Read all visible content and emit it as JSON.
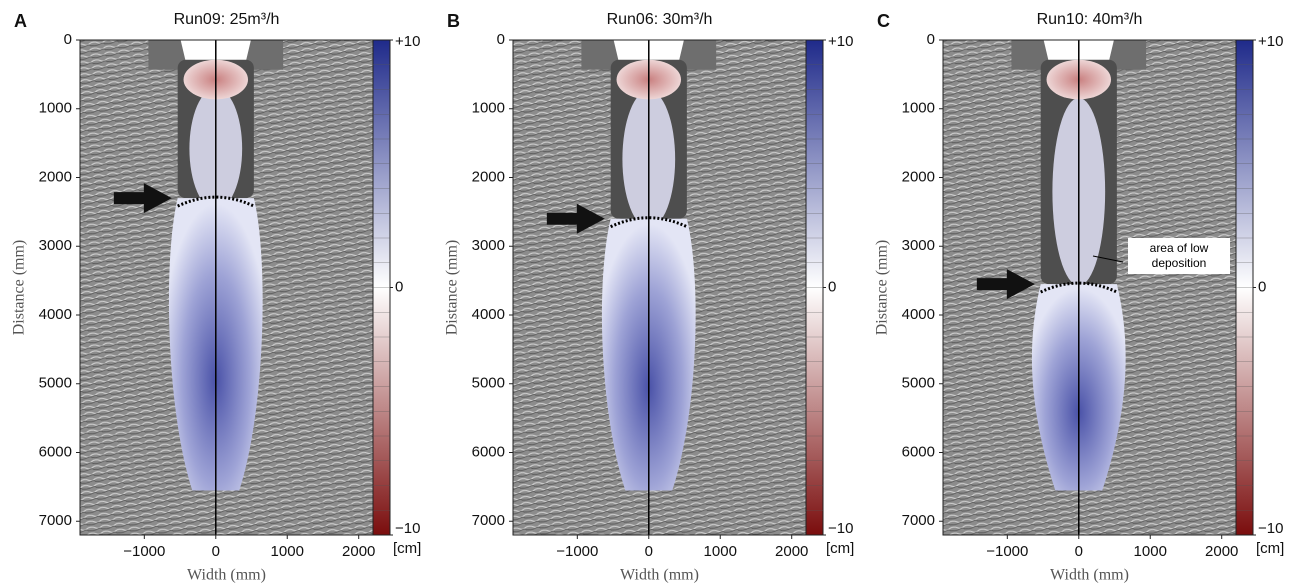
{
  "chart_data": [
    {
      "type": "image",
      "panel_label": "A",
      "title": "Run09: 25m³/h",
      "xlabel": "Width (mm)",
      "ylabel": "Distance (mm)",
      "xlim": [
        -1900,
        2200
      ],
      "xticks": [
        {
          "value": -1000,
          "label": "−1000"
        },
        0,
        1000,
        2000
      ],
      "ylim": [
        0,
        7200
      ],
      "yticks": [
        0,
        1000,
        2000,
        3000,
        4000,
        5000,
        6000,
        7000
      ],
      "y_inverted": true,
      "colorbar": {
        "lim": [
          -10,
          10
        ],
        "ticks": [
          {
            "value": 10,
            "label": "+10"
          },
          0,
          {
            "value": -10,
            "label": "−10"
          }
        ],
        "unit": "[cm]"
      },
      "arrow_distance": 2300
    },
    {
      "type": "image",
      "panel_label": "B",
      "title": "Run06: 30m³/h",
      "xlabel": "Width (mm)",
      "ylabel": "Distance (mm)",
      "xlim": [
        -1900,
        2200
      ],
      "xticks": [
        {
          "value": -1000,
          "label": "−1000"
        },
        0,
        1000,
        2000
      ],
      "ylim": [
        0,
        7200
      ],
      "yticks": [
        0,
        1000,
        2000,
        3000,
        4000,
        5000,
        6000,
        7000
      ],
      "y_inverted": true,
      "colorbar": {
        "lim": [
          -10,
          10
        ],
        "ticks": [
          {
            "value": 10,
            "label": "+10"
          },
          0,
          {
            "value": -10,
            "label": "−10"
          }
        ],
        "unit": "[cm]"
      },
      "arrow_distance": 2600
    },
    {
      "type": "image",
      "panel_label": "C",
      "title": "Run10: 40m³/h",
      "xlabel": "Width (mm)",
      "ylabel": "Distance (mm)",
      "xlim": [
        -1900,
        2200
      ],
      "xticks": [
        {
          "value": -1000,
          "label": "−1000"
        },
        0,
        1000,
        2000
      ],
      "ylim": [
        0,
        7200
      ],
      "yticks": [
        0,
        1000,
        2000,
        3000,
        4000,
        5000,
        6000,
        7000
      ],
      "y_inverted": true,
      "colorbar": {
        "lim": [
          -10,
          10
        ],
        "ticks": [
          {
            "value": 10,
            "label": "+10"
          },
          0,
          {
            "value": -10,
            "label": "−10"
          }
        ],
        "unit": "[cm]"
      },
      "arrow_distance": 3550,
      "annotation": "area of low deposition"
    }
  ]
}
